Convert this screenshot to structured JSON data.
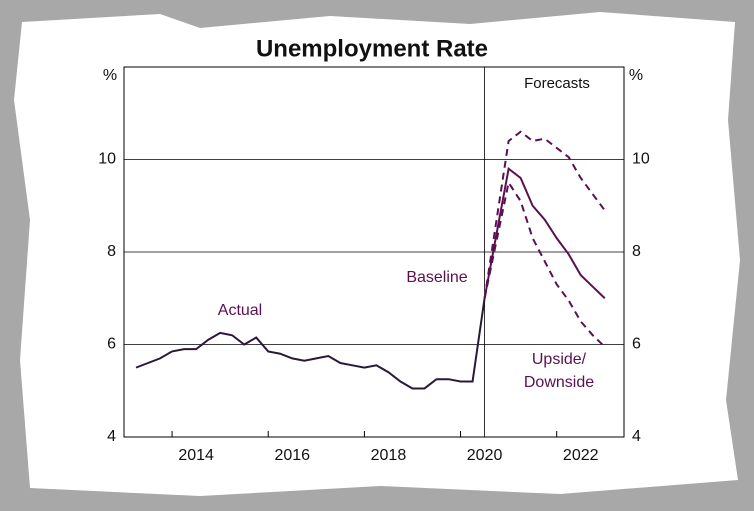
{
  "chart_data": {
    "type": "line",
    "title": "Unemployment Rate",
    "y_unit": "%",
    "xlim": [
      2013,
      2023.4
    ],
    "ylim": [
      4,
      12
    ],
    "xticks": [
      2014,
      2016,
      2018,
      2020,
      2022
    ],
    "yticks": [
      4,
      6,
      8,
      10
    ],
    "grid": true,
    "forecast_start": 2020.5,
    "forecast_label": "Forecasts",
    "series": [
      {
        "name": "Actual",
        "color": "#2b1838",
        "style": "solid",
        "x": [
          2013.25,
          2013.5,
          2013.75,
          2014,
          2014.25,
          2014.5,
          2014.75,
          2015,
          2015.25,
          2015.5,
          2015.75,
          2016,
          2016.25,
          2016.5,
          2016.75,
          2017,
          2017.25,
          2017.5,
          2017.75,
          2018,
          2018.25,
          2018.5,
          2018.75,
          2019,
          2019.25,
          2019.5,
          2019.75,
          2020,
          2020.25,
          2020.5
        ],
        "values": [
          5.5,
          5.6,
          5.7,
          5.85,
          5.9,
          5.9,
          6.1,
          6.25,
          6.2,
          6.0,
          6.15,
          5.85,
          5.8,
          5.7,
          5.65,
          5.7,
          5.75,
          5.6,
          5.55,
          5.5,
          5.55,
          5.4,
          5.2,
          5.05,
          5.05,
          5.25,
          5.25,
          5.2,
          5.2,
          7.0
        ]
      },
      {
        "name": "Baseline",
        "color": "#5a1050",
        "style": "solid",
        "x": [
          2020.5,
          2021,
          2021.25,
          2021.5,
          2021.75,
          2022,
          2022.25,
          2022.5,
          2022.75,
          2023
        ],
        "values": [
          7.0,
          9.8,
          9.6,
          9.0,
          8.7,
          8.3,
          7.95,
          7.5,
          7.25,
          7.0
        ]
      },
      {
        "color": "#5a1050",
        "style": "dashed",
        "x": [
          2020.5,
          2021,
          2021.25,
          2021.5,
          2021.75,
          2022,
          2022.25,
          2022.5,
          2022.75,
          2023
        ],
        "values": [
          7.0,
          10.4,
          10.6,
          10.4,
          10.45,
          10.25,
          10.05,
          9.6,
          9.25,
          8.9
        ]
      },
      {
        "color": "#5a1050",
        "style": "dashed",
        "x": [
          2020.5,
          2021,
          2021.25,
          2021.5,
          2021.75,
          2022,
          2022.25,
          2022.5,
          2022.75,
          2023
        ],
        "values": [
          7.0,
          9.5,
          9.1,
          8.3,
          7.8,
          7.3,
          6.95,
          6.5,
          6.2,
          5.95
        ]
      }
    ],
    "annotations": [
      "Upside/",
      "Downside"
    ]
  }
}
